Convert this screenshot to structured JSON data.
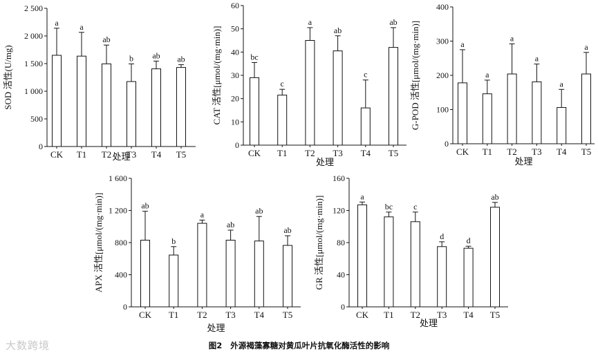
{
  "figure": {
    "caption_label": "图2",
    "caption_text": "外源褐藻寡糖对黄瓜叶片抗氧化酶活性的影响",
    "watermark": "大数跨境"
  },
  "chart_data": [
    {
      "type": "bar",
      "ylabel": "SOD 活性(U/mg)",
      "xlabel": "处理",
      "categories": [
        "CK",
        "T1",
        "T2",
        "T3",
        "T4",
        "T5"
      ],
      "values": [
        1650,
        1635,
        1495,
        1175,
        1405,
        1430
      ],
      "errors": [
        490,
        430,
        340,
        320,
        140,
        50
      ],
      "letters": [
        "a",
        "a",
        "ab",
        "b",
        "ab",
        "ab"
      ],
      "ylim": [
        0,
        2500
      ],
      "yticks": [
        0,
        500,
        1000,
        1500,
        2000,
        2500
      ],
      "ytick_labels": [
        "0",
        "500",
        "1 000",
        "1 500",
        "2 000",
        "2 500"
      ]
    },
    {
      "type": "bar",
      "ylabel": "CAT 活性[μmol/(mg·min)]",
      "xlabel": "处理",
      "categories": [
        "CK",
        "T1",
        "T2",
        "T3",
        "T4",
        "T5"
      ],
      "values": [
        29,
        21.5,
        45,
        40.5,
        16,
        42
      ],
      "errors": [
        6.5,
        2.5,
        5.5,
        6.5,
        12,
        8.5
      ],
      "letters": [
        "bc",
        "c",
        "a",
        "ab",
        "c",
        "ab"
      ],
      "ylim": [
        0,
        60
      ],
      "yticks": [
        0,
        10,
        20,
        30,
        40,
        50,
        60
      ],
      "ytick_labels": [
        "0",
        "10",
        "20",
        "30",
        "40",
        "50",
        "60"
      ]
    },
    {
      "type": "bar",
      "ylabel": "G-POD 活性[μmol/(mg·min)]",
      "xlabel": "处理",
      "categories": [
        "CK",
        "T1",
        "T2",
        "T3",
        "T4",
        "T5"
      ],
      "values": [
        178,
        146,
        204,
        181,
        106,
        204
      ],
      "errors": [
        97,
        40,
        88,
        52,
        53,
        63
      ],
      "letters": [
        "a",
        "a",
        "a",
        "a",
        "a",
        "a"
      ],
      "ylim": [
        0,
        400
      ],
      "yticks": [
        0,
        100,
        200,
        300,
        400
      ],
      "ytick_labels": [
        "0",
        "100",
        "200",
        "300",
        "400"
      ]
    },
    {
      "type": "bar",
      "ylabel": "APX 活性[μmol/(mg·min)]",
      "xlabel": "处理",
      "categories": [
        "CK",
        "T1",
        "T2",
        "T3",
        "T4",
        "T5"
      ],
      "values": [
        830,
        645,
        1040,
        830,
        820,
        765
      ],
      "errors": [
        360,
        105,
        40,
        125,
        305,
        120
      ],
      "letters": [
        "ab",
        "b",
        "a",
        "ab",
        "ab",
        "ab"
      ],
      "ylim": [
        0,
        1600
      ],
      "yticks": [
        0,
        400,
        800,
        1200,
        1600
      ],
      "ytick_labels": [
        "0",
        "400",
        "800",
        "1 200",
        "1 600"
      ]
    },
    {
      "type": "bar",
      "ylabel": "GR 活性[μmol/(mg·min)]",
      "xlabel": "处理",
      "categories": [
        "CK",
        "T1",
        "T2",
        "T3",
        "T4",
        "T5"
      ],
      "values": [
        127,
        112,
        106,
        75,
        73,
        124
      ],
      "errors": [
        3.5,
        6,
        12,
        6,
        2.5,
        6
      ],
      "letters": [
        "a",
        "bc",
        "c",
        "d",
        "d",
        "ab"
      ],
      "ylim": [
        0,
        160
      ],
      "yticks": [
        0,
        40,
        80,
        120,
        160
      ],
      "ytick_labels": [
        "0",
        "40",
        "80",
        "120",
        "160"
      ]
    }
  ]
}
